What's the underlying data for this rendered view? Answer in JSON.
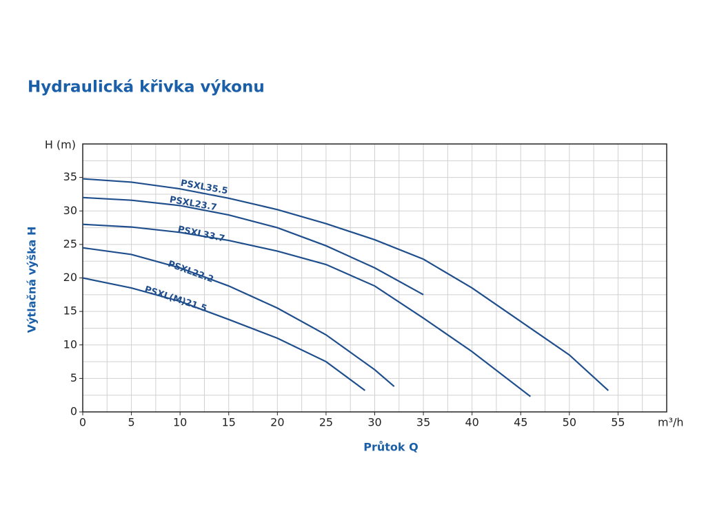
{
  "chart_data": {
    "type": "line",
    "title": "Hydraulická křivka výkonu",
    "x_label": "Průtok Q",
    "y_label": "Výtlačná výška H",
    "x_unit": "m³/h",
    "y_unit": "H (m)",
    "xlim": [
      0,
      60
    ],
    "ylim": [
      0,
      40
    ],
    "xticks": [
      0,
      5,
      10,
      15,
      20,
      25,
      30,
      35,
      40,
      45,
      50,
      55
    ],
    "yticks": [
      0,
      5,
      10,
      15,
      20,
      25,
      30,
      35
    ],
    "grid": true,
    "grid_minor_step": 2.5,
    "series": [
      {
        "name": "PSXL35.5",
        "color": "#1f4e8c",
        "x": [
          0,
          5,
          10,
          15,
          20,
          25,
          30,
          35,
          40,
          45,
          50,
          54
        ],
        "values": [
          34.8,
          34.3,
          33.3,
          31.9,
          30.2,
          28.1,
          25.7,
          22.8,
          18.5,
          13.5,
          8.5,
          3.2
        ]
      },
      {
        "name": "PSXL23.7",
        "color": "#1f4e8c",
        "x": [
          0,
          5,
          10,
          15,
          20,
          25,
          30,
          35
        ],
        "values": [
          32,
          31.6,
          30.8,
          29.4,
          27.5,
          24.8,
          21.5,
          17.5
        ]
      },
      {
        "name": "PSXL33.7",
        "color": "#1f4e8c",
        "x": [
          0,
          5,
          10,
          15,
          20,
          25,
          30,
          35,
          40,
          46
        ],
        "values": [
          28,
          27.6,
          26.8,
          25.6,
          24,
          22,
          18.8,
          14,
          9,
          2.3
        ]
      },
      {
        "name": "PSXL22.2",
        "color": "#1f4e8c",
        "x": [
          0,
          5,
          10,
          15,
          20,
          25,
          30,
          32
        ],
        "values": [
          24.5,
          23.5,
          21.5,
          18.8,
          15.5,
          11.5,
          6.3,
          3.8
        ]
      },
      {
        "name": "PSXL(M)21.5",
        "color": "#1f4e8c",
        "x": [
          0,
          5,
          10,
          15,
          20,
          25,
          29
        ],
        "values": [
          20,
          18.5,
          16.5,
          13.8,
          11,
          7.5,
          3.2
        ]
      }
    ]
  }
}
